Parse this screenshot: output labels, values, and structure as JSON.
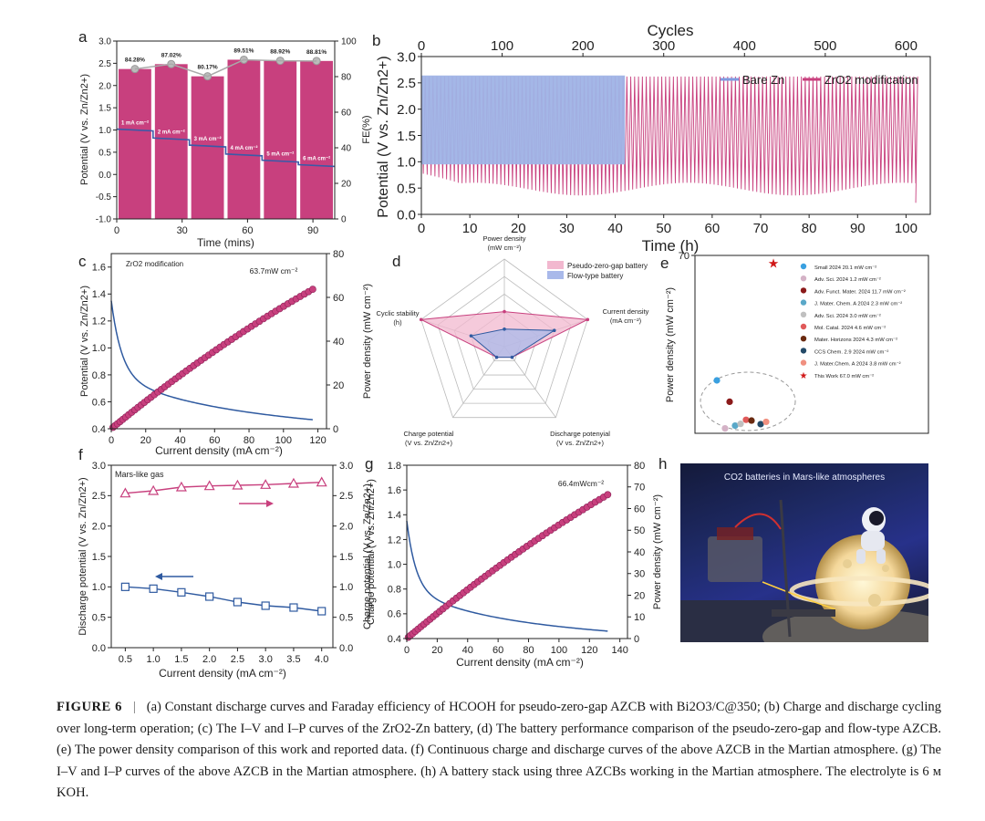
{
  "panel_labels": {
    "a": "a",
    "b": "b",
    "c": "c",
    "d": "d",
    "e": "e",
    "f": "f",
    "g": "g",
    "h": "h"
  },
  "caption": {
    "figure_label": "FIGURE 6",
    "separator": "|",
    "text": "(a) Constant discharge curves and Faraday efficiency of HCOOH for pseudo-zero-gap AZCB with Bi2O3/C@350; (b) Charge and discharge cycling over long-term operation; (c) The I–V and I–P curves of the ZrO2-Zn battery, (d) The battery performance comparison of the pseudo-zero-gap and flow-type AZCB. (e) The power density comparison of this work and reported data. (f) Continuous charge and discharge curves of the above AZCB in the Martian atmosphere. (g) The I–V and I–P curves of the above AZCB in the Martian atmosphere. (h) A battery stack using three AZCBs working in the Martian atmosphere. The electrolyte is 6 м KOH."
  },
  "chart_data": [
    {
      "id": "a",
      "type": "bar",
      "xlabel": "Time (mins)",
      "ylabel": "Potential (V vs. Zn/Zn2+)",
      "y2label": "FE(%)",
      "xlim": [
        0,
        100
      ],
      "ylim": [
        -1.0,
        3.0
      ],
      "y2lim": [
        0,
        100
      ],
      "xticks": [
        "0",
        "30",
        "60",
        "90"
      ],
      "yticks": [
        "-1.0",
        "-0.5",
        "0.0",
        "0.5",
        "1.0",
        "1.5",
        "2.0",
        "2.5",
        "3.0"
      ],
      "y2ticks": [
        "0",
        "20",
        "40",
        "60",
        "80",
        "100"
      ],
      "bars_fe": [
        84.28,
        87.02,
        80.17,
        89.51,
        88.92,
        88.81
      ],
      "bar_labels": [
        "84.28%",
        "87.02%",
        "80.17%",
        "89.51%",
        "88.92%",
        "88.81%"
      ],
      "current_labels": [
        "1 mA cm⁻²",
        "2 mA cm⁻²",
        "3 mA cm⁻²",
        "4 mA cm⁻²",
        "5 mA cm⁻²",
        "6 mA cm⁻²"
      ],
      "potential_steps": [
        1.02,
        0.82,
        0.66,
        0.46,
        0.32,
        0.22
      ]
    },
    {
      "id": "b",
      "type": "line",
      "xlabel": "Time (h)",
      "ylabel": "Potential (V vs. Zn/Zn2+)",
      "x2label": "Cycles",
      "xlim": [
        0,
        105
      ],
      "ylim": [
        0,
        3.0
      ],
      "x2lim": [
        0,
        630
      ],
      "xticks": [
        "0",
        "10",
        "20",
        "30",
        "40",
        "50",
        "60",
        "70",
        "80",
        "90",
        "100"
      ],
      "x2ticks": [
        "0",
        "100",
        "200",
        "300",
        "400",
        "500",
        "600"
      ],
      "yticks": [
        "0.0",
        "0.5",
        "1.0",
        "1.5",
        "2.0",
        "2.5",
        "3.0"
      ],
      "series": [
        {
          "name": "Bare Zn",
          "x_end": 42,
          "charge": 2.62,
          "discharge": 0.95
        },
        {
          "name": "ZrO2 modification",
          "x_end": 102,
          "charge": 2.62,
          "discharge": 0.48
        }
      ]
    },
    {
      "id": "c",
      "type": "line",
      "annotation": "ZrO2 modification",
      "peak_label": "63.7mW cm⁻²",
      "xlabel": "Current density (mA cm⁻²)",
      "ylabel": "Potential (V vs. Zn/Zn2+)",
      "y2label": "Power density (mW cm⁻²)",
      "xlim": [
        0,
        125
      ],
      "ylim": [
        0.4,
        1.7
      ],
      "y2lim": [
        0,
        80
      ],
      "xticks": [
        "0",
        "20",
        "40",
        "60",
        "80",
        "100",
        "120"
      ],
      "yticks": [
        "0.4",
        "0.6",
        "0.8",
        "1.0",
        "1.2",
        "1.4",
        "1.6"
      ],
      "y2ticks": [
        "0",
        "20",
        "40",
        "60",
        "80"
      ],
      "peak_power": 63.7,
      "max_current": 117
    },
    {
      "id": "d",
      "type": "radar",
      "axes": [
        "Power density (mW cm⁻²)",
        "Current density (mA cm⁻²)",
        "Discharge potenyial (V vs. Zn/Zn2+)",
        "Charge potential (V vs. Zn/Zn2+)",
        "Cyclic stability (h)"
      ],
      "series": [
        {
          "name": "Pseudo-zero-gap battery",
          "values": [
            0.4,
            1.0,
            0.15,
            0.15,
            1.0
          ]
        },
        {
          "name": "Flow-type battery",
          "values": [
            0.2,
            0.6,
            0.15,
            0.15,
            0.4
          ]
        }
      ]
    },
    {
      "id": "e",
      "type": "scatter",
      "ylabel": "Power density (mW cm⁻²)",
      "ylim": [
        0,
        70
      ],
      "yticks": [
        "70"
      ],
      "legend": [
        {
          "label": "Small 2024  20.1 mW cm⁻²",
          "color": "#3aa0e0",
          "value": 20.1
        },
        {
          "label": "Adv. Sci. 2024  1.2 mW cm⁻²",
          "color": "#d4b2c6",
          "value": 1.2
        },
        {
          "label": "Adv. Funct. Mater. 2024 11.7 mW cm⁻²",
          "color": "#8b1a1a",
          "value": 11.7
        },
        {
          "label": "J. Mater. Chem. A 2024 2.3 mW cm⁻²",
          "color": "#5aa8c8",
          "value": 2.3
        },
        {
          "label": "Adv. Sci. 2024 3.0 mW cm⁻²",
          "color": "#c0c0c0",
          "value": 3.0
        },
        {
          "label": "Mol. Catal. 2024 4.6 mW cm⁻²",
          "color": "#e05a5a",
          "value": 4.6
        },
        {
          "label": "Mater. Horizons 2024 4.3 mW cm⁻²",
          "color": "#6a2a10",
          "value": 4.3
        },
        {
          "label": "CCS Chem. 2.9 2024 mW cm⁻²",
          "color": "#244a68",
          "value": 2.9
        },
        {
          "label": "J. Mater.Chem. A 2024 3.8 mW cm⁻²",
          "color": "#f09080",
          "value": 3.8
        },
        {
          "label": "This Work 67.0 mW cm⁻²",
          "color": "#d01818",
          "value": 67.0
        }
      ]
    },
    {
      "id": "f",
      "type": "line",
      "annotation": "Mars-like gas",
      "xlabel": "Current density (mA cm⁻²)",
      "ylabel": "Discharge potential (V vs. Zn/Zn2+)",
      "y2label": "Charge potential (V vs. Zn/Zn2+)",
      "xlim": [
        0.25,
        4.2
      ],
      "ylim": [
        0,
        3.0
      ],
      "xticks": [
        "0.5",
        "1.0",
        "1.5",
        "2.0",
        "2.5",
        "3.0",
        "3.5",
        "4.0"
      ],
      "yticks": [
        "0.0",
        "0.5",
        "1.0",
        "1.5",
        "2.0",
        "2.5",
        "3.0"
      ],
      "x": [
        0.5,
        1.0,
        1.5,
        2.0,
        2.5,
        3.0,
        3.5,
        4.0
      ],
      "series": [
        {
          "name": "Charge",
          "values": [
            2.54,
            2.58,
            2.64,
            2.66,
            2.67,
            2.68,
            2.7,
            2.72
          ]
        },
        {
          "name": "Discharge",
          "values": [
            1.0,
            0.97,
            0.91,
            0.84,
            0.75,
            0.69,
            0.66,
            0.6
          ]
        }
      ]
    },
    {
      "id": "g",
      "type": "line",
      "peak_label": "66.4mWcm⁻²",
      "xlabel": "Current density (mA cm⁻²)",
      "ylabel": "Charge potential (V vs. Zn/Zn2+)",
      "y2label": "Power density (mW cm⁻²)",
      "xlim": [
        0,
        145
      ],
      "ylim": [
        0.4,
        1.8
      ],
      "y2lim": [
        0,
        80
      ],
      "xticks": [
        "0",
        "20",
        "40",
        "60",
        "80",
        "100",
        "120",
        "140"
      ],
      "yticks": [
        "0.4",
        "0.6",
        "0.8",
        "1.0",
        "1.2",
        "1.4",
        "1.6",
        "1.8"
      ],
      "y2ticks": [
        "0",
        "10",
        "20",
        "30",
        "40",
        "50",
        "60",
        "70",
        "80"
      ],
      "peak_power": 66.4,
      "max_current": 132
    }
  ],
  "photo_h": {
    "caption": "CO2 batteries in Mars-like atmospheres"
  }
}
